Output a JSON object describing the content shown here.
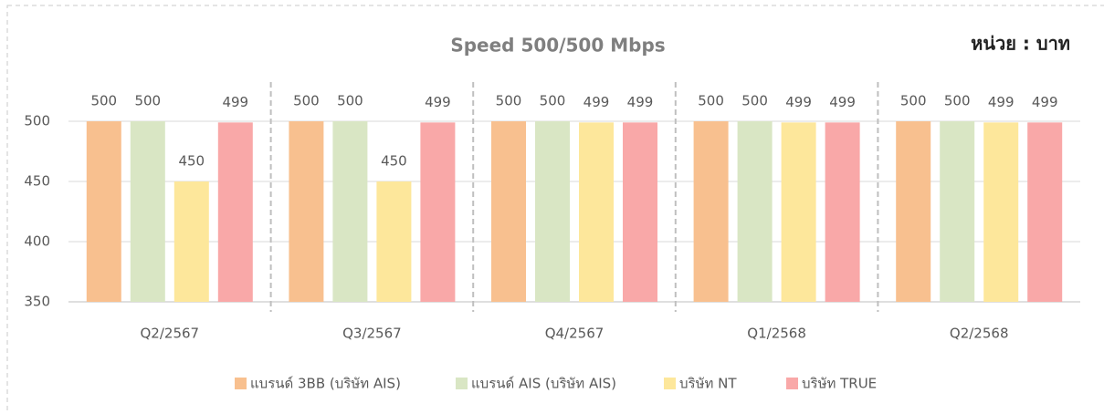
{
  "chart_data": {
    "type": "bar",
    "title": "Speed 500/500 Mbps",
    "subtitle": "หน่วย : บาท",
    "categories": [
      "Q2/2567",
      "Q3/2567",
      "Q4/2567",
      "Q1/2568",
      "Q2/2568"
    ],
    "series": [
      {
        "name": "แบรนด์ 3BB (บริษัท AIS)",
        "color": "#f8c08f",
        "values": [
          500,
          500,
          500,
          500,
          500
        ]
      },
      {
        "name": "แบรนด์ AIS (บริษัท AIS)",
        "color": "#d9e6c4",
        "values": [
          500,
          500,
          500,
          500,
          500
        ]
      },
      {
        "name": "บริษัท NT",
        "color": "#fde79b",
        "values": [
          450,
          450,
          499,
          499,
          499
        ]
      },
      {
        "name": "บริษัท TRUE",
        "color": "#f9a8a8",
        "values": [
          499,
          499,
          499,
          499,
          499
        ]
      }
    ],
    "ylim": [
      350,
      500
    ],
    "yticks": [
      350,
      400,
      450,
      500
    ],
    "grid": true,
    "legend": "bottom"
  }
}
